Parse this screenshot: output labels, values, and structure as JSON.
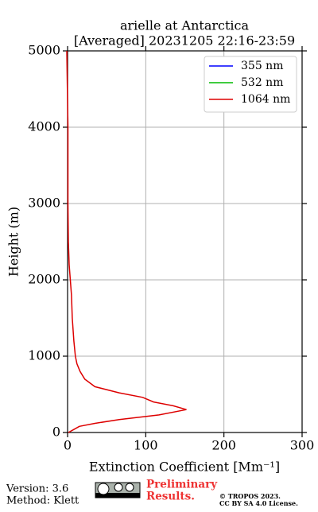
{
  "chart_data": {
    "type": "line",
    "title": [
      "arielle at Antarctica",
      "[Averaged] 20231205 22:16-23:59"
    ],
    "xlabel": "Extinction Coefficient [Mm⁻¹]",
    "ylabel": "Height (m)",
    "y": [
      0,
      40,
      80,
      120,
      170,
      230,
      300,
      350,
      400,
      460,
      520,
      600,
      700,
      800,
      900,
      1000,
      1200,
      1500,
      1800,
      2200,
      2500,
      3000,
      4000,
      5000
    ],
    "series": [
      {
        "name": "355 nm",
        "color": "#0000ff",
        "values": [
          null,
          null,
          null,
          null,
          null,
          null,
          null,
          null,
          null,
          null,
          null,
          null,
          null,
          null,
          null,
          null,
          null,
          null,
          null,
          null,
          null,
          null,
          null,
          null
        ]
      },
      {
        "name": "532 nm",
        "color": "#00bb00",
        "values": [
          null,
          null,
          null,
          null,
          null,
          null,
          null,
          null,
          null,
          null,
          null,
          null,
          null,
          null,
          null,
          null,
          null,
          null,
          null,
          null,
          null,
          null,
          null,
          null
        ]
      },
      {
        "name": "1064 nm",
        "color": "#dd0000",
        "values": [
          1,
          8,
          15,
          35,
          66,
          117,
          152,
          135,
          110,
          96,
          66,
          35,
          22,
          16,
          12,
          10,
          8,
          6,
          5,
          2,
          1,
          0.5,
          0.5,
          -1
        ]
      }
    ],
    "xlim": [
      0,
      300
    ],
    "xticks": [
      0,
      100,
      200,
      300
    ],
    "ylim": [
      0,
      5000
    ],
    "yticks": [
      0,
      1000,
      2000,
      3000,
      4000,
      5000
    ],
    "grid": true,
    "legend": "upper right"
  },
  "footer": {
    "version": "Version: 3.6",
    "method": "Method: Klett",
    "notice": [
      "Preliminary",
      "Results."
    ],
    "copyright": [
      "© TROPOS 2023.",
      "CC BY SA 4.0 License."
    ]
  }
}
